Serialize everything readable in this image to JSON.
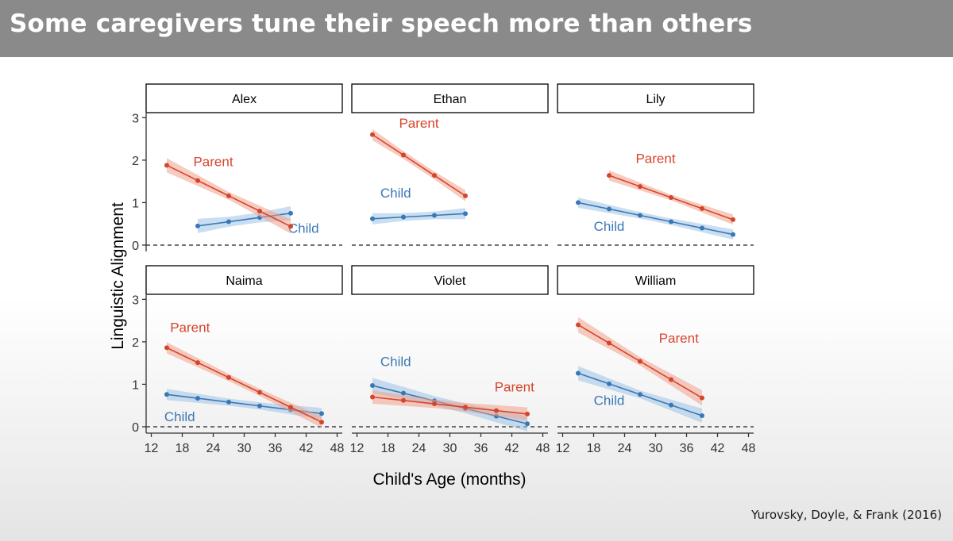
{
  "slide": {
    "title": "Some caregivers tune their speech more than others",
    "citation": "Yurovsky, Doyle, & Frank (2016)"
  },
  "colors": {
    "parent": "#d6452b",
    "parent_band": "#f0a08a",
    "child": "#3a78b5",
    "child_band": "#9ec3e6",
    "title_bar": "#8a8a8a"
  },
  "chart_data": {
    "type": "line",
    "xlabel": "Child's Age (months)",
    "ylabel": "Linguistic Alignment",
    "xlim": [
      11,
      49
    ],
    "ylim": [
      -0.15,
      3.1
    ],
    "x_ticks": [
      12,
      18,
      24,
      30,
      36,
      42,
      48
    ],
    "y_ticks": [
      0,
      1,
      2,
      3
    ],
    "reference_line": {
      "y": 0,
      "style": "dashed"
    },
    "series_labels": {
      "parent": "Parent",
      "child": "Child"
    },
    "panels": [
      {
        "name": "Alex",
        "parent": {
          "x": [
            15,
            21,
            27,
            33,
            39
          ],
          "y": [
            1.88,
            1.52,
            1.16,
            0.8,
            0.44
          ]
        },
        "child": {
          "x": [
            21,
            27,
            33,
            39
          ],
          "y": [
            0.45,
            0.55,
            0.65,
            0.75
          ]
        },
        "band_width": {
          "parent": 0.14,
          "child": 0.14
        },
        "label_pos": {
          "parent": [
            24,
            1.86
          ],
          "child": [
            41.5,
            0.29
          ]
        }
      },
      {
        "name": "Ethan",
        "parent": {
          "x": [
            15,
            21,
            27,
            33
          ],
          "y": [
            2.6,
            2.12,
            1.64,
            1.16
          ]
        },
        "child": {
          "x": [
            15,
            21,
            27,
            33
          ],
          "y": [
            0.62,
            0.66,
            0.7,
            0.74
          ]
        },
        "band_width": {
          "parent": 0.11,
          "child": 0.11
        },
        "label_pos": {
          "parent": [
            24,
            2.76
          ],
          "child": [
            19.5,
            1.12
          ]
        }
      },
      {
        "name": "Lily",
        "parent": {
          "x": [
            21,
            27,
            33,
            39,
            45
          ],
          "y": [
            1.64,
            1.38,
            1.12,
            0.86,
            0.6
          ]
        },
        "child": {
          "x": [
            15,
            21,
            27,
            33,
            39,
            45
          ],
          "y": [
            1.0,
            0.85,
            0.7,
            0.55,
            0.4,
            0.25
          ]
        },
        "band_width": {
          "parent": 0.1,
          "child": 0.1
        },
        "label_pos": {
          "parent": [
            30,
            1.93
          ],
          "child": [
            21,
            0.34
          ]
        }
      },
      {
        "name": "Naima",
        "parent": {
          "x": [
            15,
            21,
            27,
            33,
            39,
            45
          ],
          "y": [
            1.86,
            1.51,
            1.16,
            0.81,
            0.46,
            0.11
          ]
        },
        "child": {
          "x": [
            15,
            21,
            27,
            33,
            39,
            45
          ],
          "y": [
            0.76,
            0.67,
            0.58,
            0.49,
            0.4,
            0.31
          ]
        },
        "band_width": {
          "parent": 0.11,
          "child": 0.11
        },
        "label_pos": {
          "parent": [
            19.5,
            2.23
          ],
          "child": [
            17.5,
            0.13
          ]
        }
      },
      {
        "name": "Violet",
        "parent": {
          "x": [
            15,
            21,
            27,
            33,
            39,
            45
          ],
          "y": [
            0.7,
            0.62,
            0.54,
            0.46,
            0.38,
            0.3
          ]
        },
        "child": {
          "x": [
            15,
            21,
            27,
            33,
            39,
            45
          ],
          "y": [
            0.97,
            0.79,
            0.61,
            0.43,
            0.25,
            0.07
          ]
        },
        "band_width": {
          "parent": 0.13,
          "child": 0.15
        },
        "label_pos": {
          "parent": [
            42.5,
            0.83
          ],
          "child": [
            19.5,
            1.43
          ]
        }
      },
      {
        "name": "William",
        "parent": {
          "x": [
            15,
            21,
            27,
            33,
            39
          ],
          "y": [
            2.4,
            1.97,
            1.54,
            1.11,
            0.68
          ]
        },
        "child": {
          "x": [
            15,
            21,
            27,
            33,
            39
          ],
          "y": [
            1.26,
            1.01,
            0.76,
            0.51,
            0.26
          ]
        },
        "band_width": {
          "parent": 0.15,
          "child": 0.14
        },
        "label_pos": {
          "parent": [
            34.5,
            1.98
          ],
          "child": [
            21,
            0.51
          ]
        }
      }
    ]
  }
}
